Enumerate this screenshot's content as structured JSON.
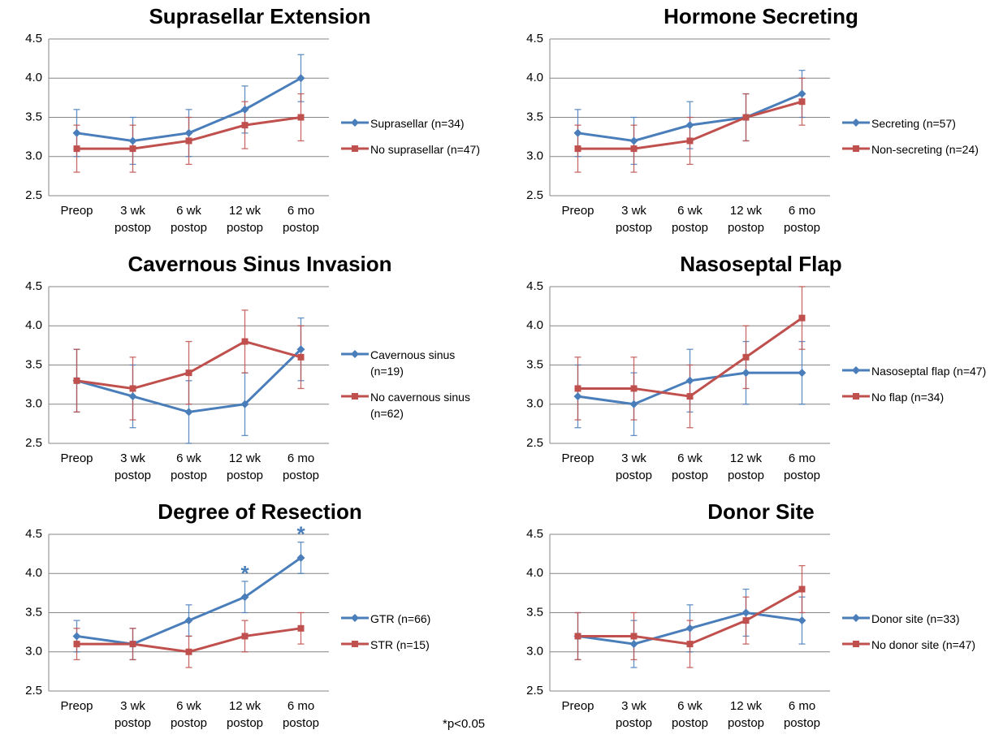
{
  "chart_data": [
    {
      "type": "line",
      "title": "Suprasellar Extension",
      "categories": [
        "Preop",
        "3 wk postop",
        "6 wk postop",
        "12 wk postop",
        "6 mo postop"
      ],
      "ylim": [
        2.5,
        4.5
      ],
      "yticks": [
        2.5,
        {
          "value": 3,
          "label": "3.0"
        },
        3.5,
        {
          "value": 4,
          "label": "4.0"
        },
        4.5
      ],
      "grid": true,
      "legend": "right",
      "series": [
        {
          "name": "Suprasellar (n=34)",
          "color": "#4a7ebb",
          "marker": "diamond",
          "values": [
            3.3,
            3.2,
            3.3,
            3.6,
            4.0
          ],
          "errors": [
            0.3,
            0.3,
            0.3,
            0.3,
            0.3
          ]
        },
        {
          "name": "No suprasellar (n=47)",
          "color": "#c0504d",
          "marker": "square",
          "values": [
            3.1,
            3.1,
            3.2,
            3.4,
            3.5
          ],
          "errors": [
            0.3,
            0.3,
            0.3,
            0.3,
            0.3
          ]
        }
      ]
    },
    {
      "type": "line",
      "title": "Hormone Secreting",
      "categories": [
        "Preop",
        "3 wk postop",
        "6 wk postop",
        "12 wk postop",
        "6 mo postop"
      ],
      "ylim": [
        2.5,
        4.5
      ],
      "yticks": [
        2.5,
        {
          "value": 3,
          "label": "3.0"
        },
        3.5,
        {
          "value": 4,
          "label": "4.0"
        },
        4.5
      ],
      "grid": true,
      "legend": "right",
      "series": [
        {
          "name": "Secreting (n=57)",
          "color": "#4a7ebb",
          "marker": "diamond",
          "values": [
            3.3,
            3.2,
            3.4,
            3.5,
            3.8
          ],
          "errors": [
            0.3,
            0.3,
            0.3,
            0.3,
            0.3
          ]
        },
        {
          "name": "Non-secreting (n=24)",
          "color": "#c0504d",
          "marker": "square",
          "values": [
            3.1,
            3.1,
            3.2,
            3.5,
            3.7
          ],
          "errors": [
            0.3,
            0.3,
            0.3,
            0.3,
            0.3
          ]
        }
      ]
    },
    {
      "type": "line",
      "title": "Cavernous Sinus Invasion",
      "categories": [
        "Preop",
        "3 wk postop",
        "6 wk postop",
        "12 wk postop",
        "6 mo postop"
      ],
      "ylim": [
        2.5,
        4.5
      ],
      "yticks": [
        2.5,
        {
          "value": 3,
          "label": "3.0"
        },
        3.5,
        {
          "value": 4,
          "label": "4.0"
        },
        4.5
      ],
      "grid": true,
      "legend": "right",
      "series": [
        {
          "name": "Cavernous sinus (n=19)",
          "color": "#4a7ebb",
          "marker": "diamond",
          "values": [
            3.3,
            3.1,
            2.9,
            3.0,
            3.7
          ],
          "errors": [
            0.4,
            0.4,
            0.4,
            0.4,
            0.4
          ]
        },
        {
          "name": "No cavernous sinus (n=62)",
          "color": "#c0504d",
          "marker": "square",
          "values": [
            3.3,
            3.2,
            3.4,
            3.8,
            3.6
          ],
          "errors": [
            0.4,
            0.4,
            0.4,
            0.4,
            0.4
          ]
        }
      ]
    },
    {
      "type": "line",
      "title": "Nasoseptal Flap",
      "categories": [
        "Preop",
        "3 wk postop",
        "6 wk postop",
        "12 wk postop",
        "6 mo postop"
      ],
      "ylim": [
        2.5,
        4.5
      ],
      "yticks": [
        2.5,
        {
          "value": 3,
          "label": "3.0"
        },
        3.5,
        {
          "value": 4,
          "label": "4.0"
        },
        4.5
      ],
      "grid": true,
      "legend": "right",
      "series": [
        {
          "name": "Nasoseptal flap (n=47)",
          "color": "#4a7ebb",
          "marker": "diamond",
          "values": [
            3.1,
            3.0,
            3.3,
            3.4,
            3.4
          ],
          "errors": [
            0.4,
            0.4,
            0.4,
            0.4,
            0.4
          ]
        },
        {
          "name": "No flap (n=34)",
          "color": "#c0504d",
          "marker": "square",
          "values": [
            3.2,
            3.2,
            3.1,
            3.6,
            4.1
          ],
          "errors": [
            0.4,
            0.4,
            0.4,
            0.4,
            0.4
          ]
        }
      ]
    },
    {
      "type": "line",
      "title": "Degree of Resection",
      "categories": [
        "Preop",
        "3 wk postop",
        "6 wk postop",
        "12 wk postop",
        "6 mo postop"
      ],
      "ylim": [
        2.5,
        4.5
      ],
      "yticks": [
        2.5,
        {
          "value": 3,
          "label": "3.0"
        },
        3.5,
        {
          "value": 4,
          "label": "4.0"
        },
        4.5
      ],
      "grid": true,
      "legend": "right",
      "series": [
        {
          "name": "GTR (n=66)",
          "color": "#4a7ebb",
          "marker": "diamond",
          "values": [
            3.2,
            3.1,
            3.4,
            3.7,
            4.2
          ],
          "errors": [
            0.2,
            0.2,
            0.2,
            0.2,
            0.2
          ]
        },
        {
          "name": "STR (n=15)",
          "color": "#c0504d",
          "marker": "square",
          "values": [
            3.1,
            3.1,
            3.0,
            3.2,
            3.3
          ],
          "errors": [
            0.2,
            0.2,
            0.2,
            0.2,
            0.2
          ]
        }
      ],
      "annotations": [
        {
          "text": "*",
          "category": "12 wk postop"
        },
        {
          "text": "*",
          "category": "6 mo postop"
        }
      ],
      "note": "*p<0.05"
    },
    {
      "type": "line",
      "title": "Donor Site",
      "categories": [
        "Preop",
        "3 wk postop",
        "6 wk postop",
        "12 wk postop",
        "6 mo postop"
      ],
      "ylim": [
        2.5,
        4.5
      ],
      "yticks": [
        2.5,
        {
          "value": 3,
          "label": "3.0"
        },
        3.5,
        {
          "value": 4,
          "label": "4.0"
        },
        4.5
      ],
      "grid": true,
      "legend": "right",
      "series": [
        {
          "name": "Donor site (n=33)",
          "color": "#4a7ebb",
          "marker": "diamond",
          "values": [
            3.2,
            3.1,
            3.3,
            3.5,
            3.4
          ],
          "errors": [
            0.3,
            0.3,
            0.3,
            0.3,
            0.3
          ]
        },
        {
          "name": "No donor site (n=47)",
          "color": "#c0504d",
          "marker": "square",
          "values": [
            3.2,
            3.2,
            3.1,
            3.4,
            3.8
          ],
          "errors": [
            0.3,
            0.3,
            0.3,
            0.3,
            0.3
          ]
        }
      ]
    }
  ]
}
